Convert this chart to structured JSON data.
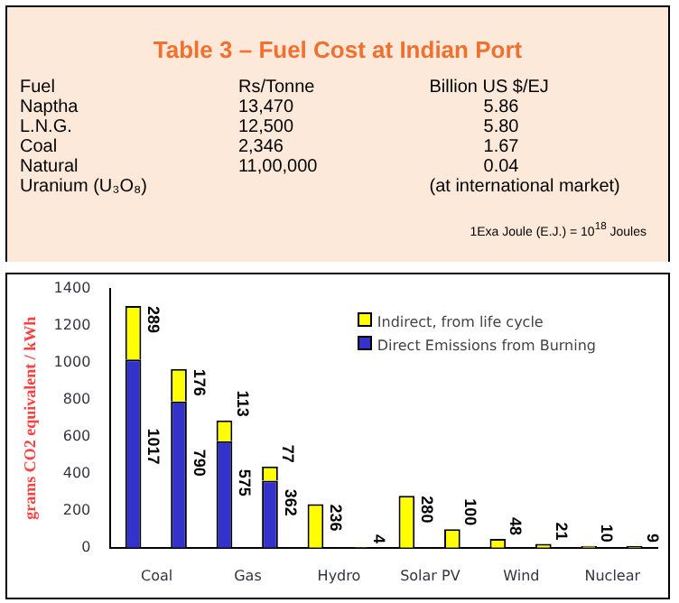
{
  "chart_data": [
    {
      "type": "other",
      "title": "Table 3 – Fuel Cost at Indian Port",
      "annotations": [
        "Fuel",
        "Rs/Tonne",
        "Billion US $/EJ",
        "Naptha",
        "13,470",
        "5.86",
        "L.N.G.",
        "12,500",
        "5.80",
        "Coal",
        "2,346",
        "1.67",
        "Natural",
        "11,00,000",
        "0.04",
        "Uranium (U₃O₈)",
        "(at international market)",
        "1Exa Joule (E.J.) = 10$^{18}$ Joules"
      ]
    },
    {
      "type": "bar",
      "stacked": true,
      "ylabel": "grams CO2 equivalent / kWh",
      "categories": [
        "Coal",
        null,
        "Gas",
        null,
        "Hydro",
        null,
        "Solar PV",
        null,
        "Wind",
        null,
        "Nuclear",
        null
      ],
      "ylim": [
        0,
        1400
      ],
      "yticks": [
        0,
        200,
        400,
        600,
        800,
        1000,
        1200,
        1400
      ],
      "legend": "top right",
      "data_labels": true,
      "series": [
        {
          "name": "Direct Emissions from Burning",
          "color": "#3333cc",
          "values": [
            1017,
            790,
            575,
            362,
            null,
            null,
            null,
            null,
            null,
            null,
            null,
            null
          ]
        },
        {
          "name": "Indirect, from life cycle",
          "color": "#ffff00",
          "values": [
            289,
            176,
            113,
            77,
            236,
            4,
            280,
            100,
            48,
            21,
            10,
            9
          ]
        }
      ]
    }
  ]
}
